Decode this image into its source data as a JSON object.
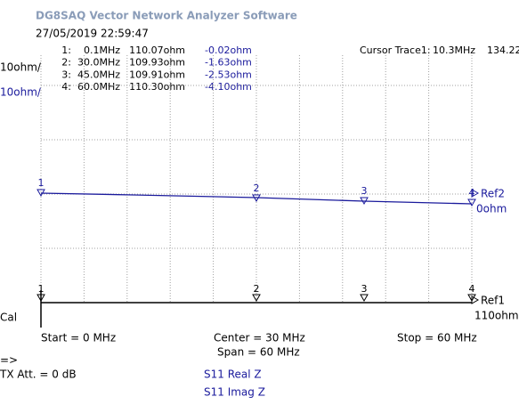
{
  "window": {
    "title": "DG8SAQ Vector Network Analyzer Software",
    "timestamp": "27/05/2019   22:59:47"
  },
  "marker_table": {
    "rows": [
      [
        "1:",
        "0.1MHz",
        "110.07ohm",
        "-0.02ohm"
      ],
      [
        "2:",
        "30.0MHz",
        "109.93ohm",
        "-1.63ohm"
      ],
      [
        "3:",
        "45.0MHz",
        "109.91ohm",
        "-2.53ohm"
      ],
      [
        "4:",
        "60.0MHz",
        "110.30ohm",
        "-4.10ohm"
      ]
    ]
  },
  "cursor": {
    "label": "Cursor Trace1:",
    "frequency": "10.3MHz",
    "value": "134.22"
  },
  "scales": {
    "trace1": "10ohm/",
    "trace2": "10ohm/"
  },
  "marker_flags": [
    "1",
    "2",
    "3",
    "4"
  ],
  "references": {
    "ref2": "Ref2",
    "ref2_value": "0ohm",
    "ref1": "Ref1",
    "ref1_value": "110ohm"
  },
  "cal": "Cal",
  "sweep": {
    "start": "Start = 0 MHz",
    "center": "Center = 30 MHz",
    "span": "Span = 60 MHz",
    "stop": "Stop = 60 MHz"
  },
  "status": {
    "arrow": "=>",
    "tx_att": "TX Att. = 0 dB"
  },
  "traces": [
    "S11  Real Z",
    "S11  Imag Z"
  ]
}
